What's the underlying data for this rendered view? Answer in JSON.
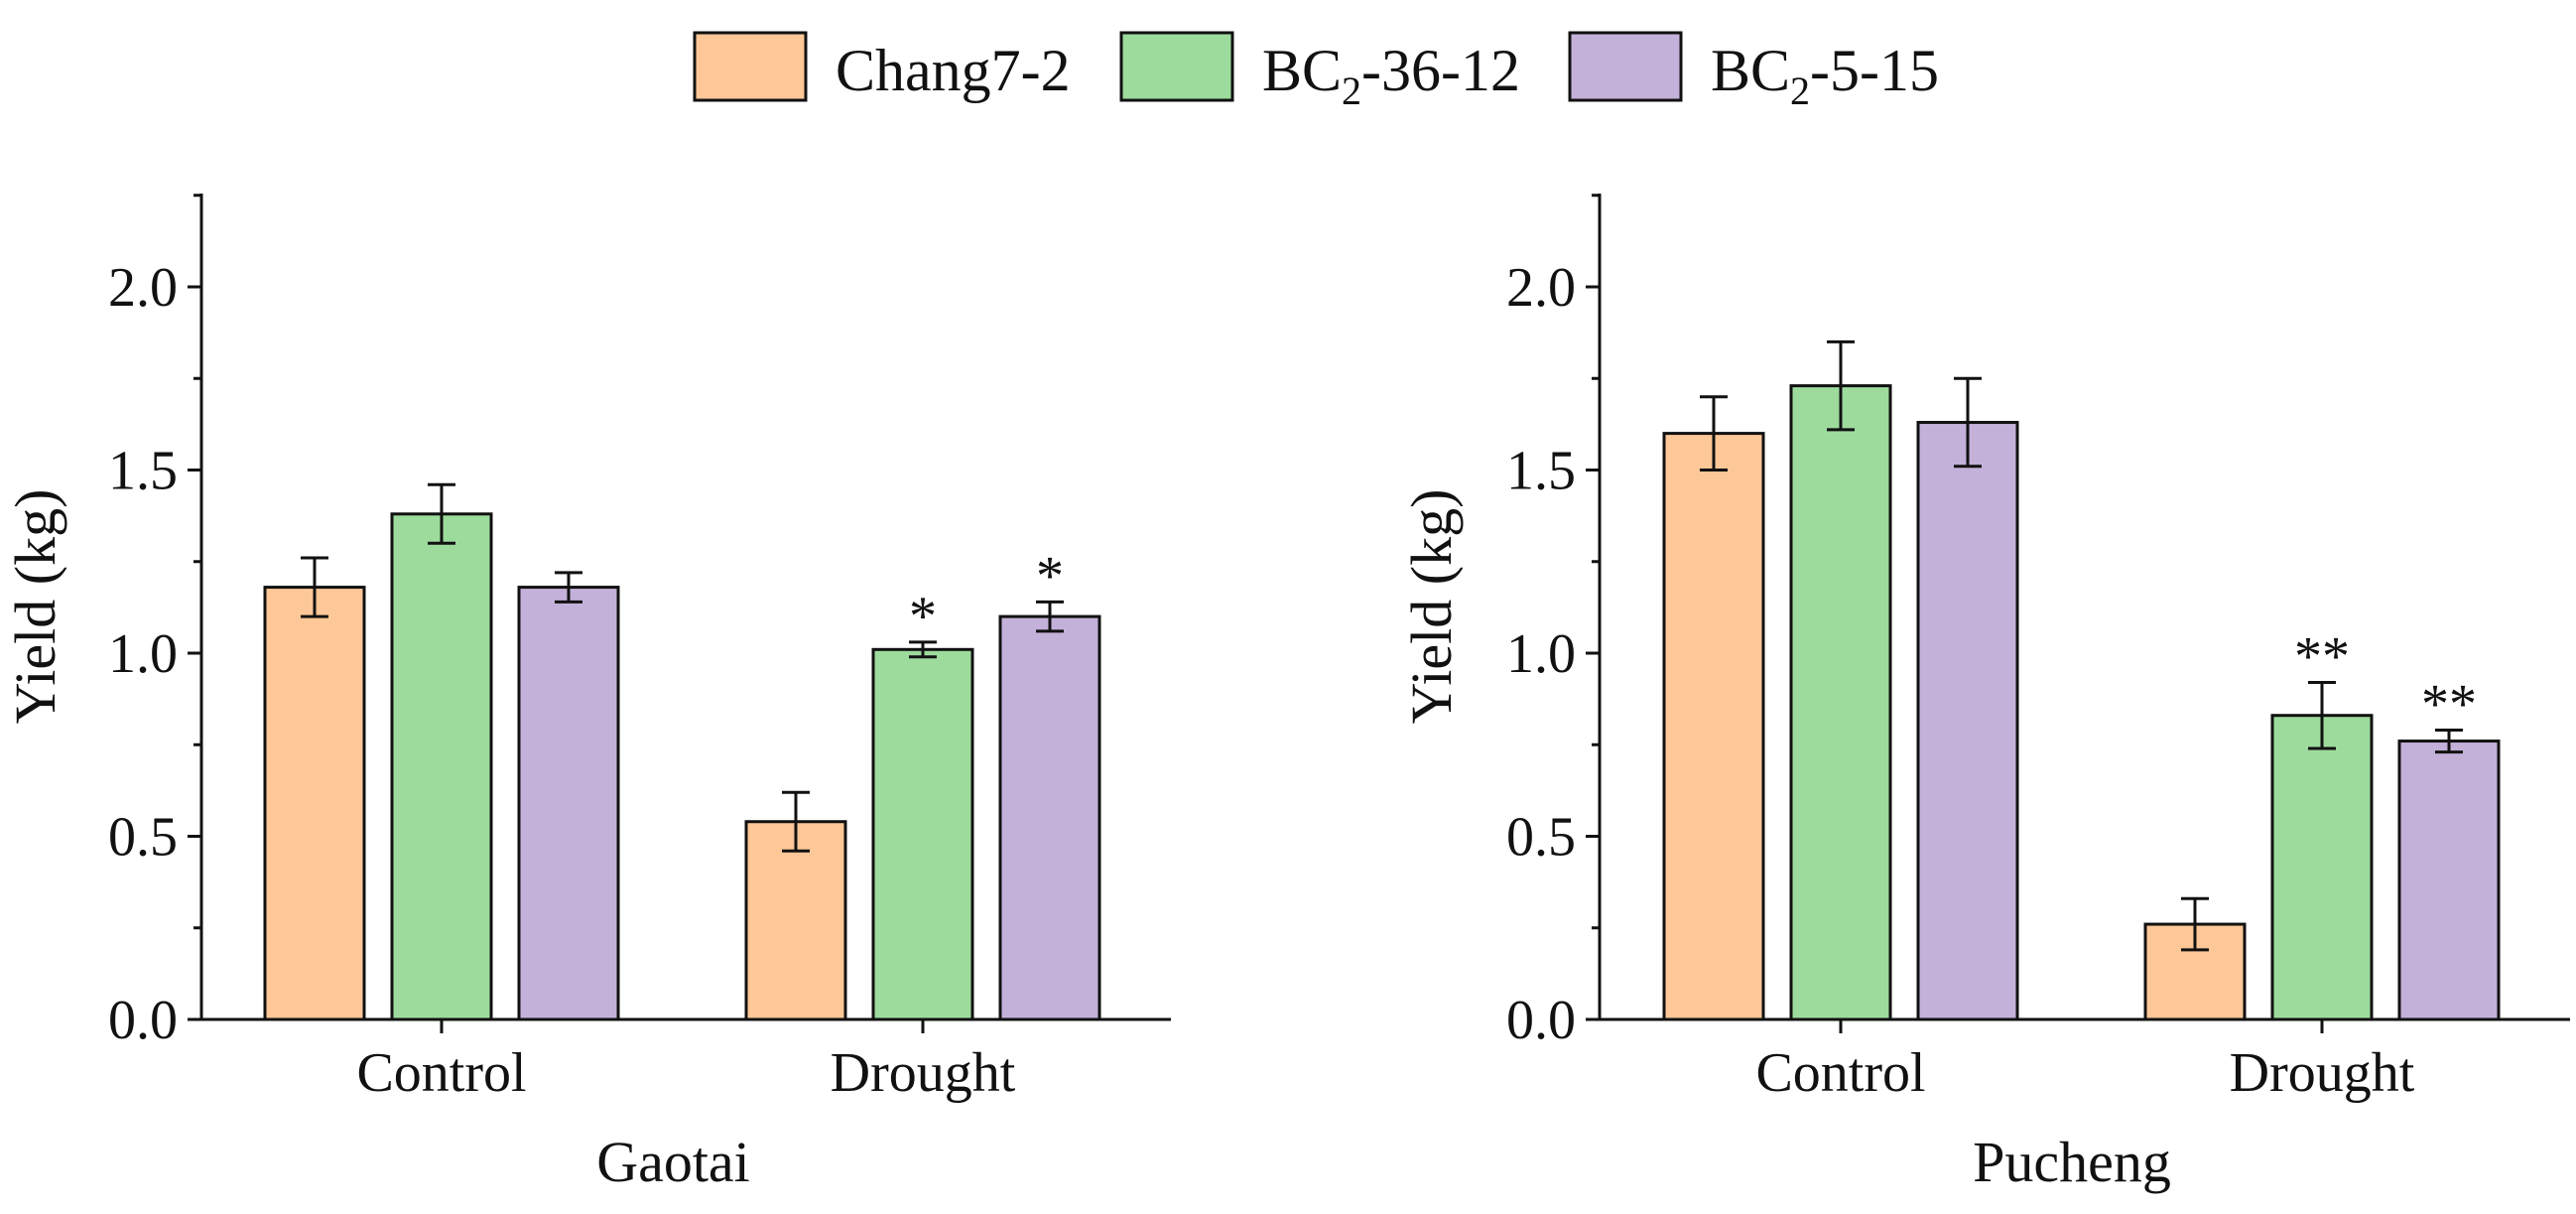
{
  "chart_data": [
    {
      "type": "bar",
      "title": "",
      "xlabel": "Gaotai",
      "ylabel": "Yield (kg)",
      "ylim": [
        0,
        2.25
      ],
      "yticks": [
        "0.0",
        "0.5",
        "1.0",
        "1.5",
        "2.0"
      ],
      "categories": [
        "Control",
        "Drought"
      ],
      "series": [
        {
          "name": "Chang7-2",
          "values": [
            1.18,
            0.54
          ],
          "errors": [
            0.08,
            0.08
          ],
          "sig": [
            "",
            ""
          ]
        },
        {
          "name": "BC2-36-12",
          "values": [
            1.38,
            1.01
          ],
          "errors": [
            0.08,
            0.02
          ],
          "sig": [
            "",
            "*"
          ]
        },
        {
          "name": "BC2-5-15",
          "values": [
            1.18,
            1.1
          ],
          "errors": [
            0.04,
            0.04
          ],
          "sig": [
            "",
            "*"
          ]
        }
      ]
    },
    {
      "type": "bar",
      "title": "",
      "xlabel": "Pucheng",
      "ylabel": "Yield (kg)",
      "ylim": [
        0,
        2.25
      ],
      "yticks": [
        "0.0",
        "0.5",
        "1.0",
        "1.5",
        "2.0"
      ],
      "categories": [
        "Control",
        "Drought"
      ],
      "series": [
        {
          "name": "Chang7-2",
          "values": [
            1.6,
            0.26
          ],
          "errors": [
            0.1,
            0.07
          ],
          "sig": [
            "",
            ""
          ]
        },
        {
          "name": "BC2-36-12",
          "values": [
            1.73,
            0.83
          ],
          "errors": [
            0.12,
            0.09
          ],
          "sig": [
            "",
            "**"
          ]
        },
        {
          "name": "BC2-5-15",
          "values": [
            1.63,
            0.76
          ],
          "errors": [
            0.12,
            0.03
          ],
          "sig": [
            "",
            "**"
          ]
        }
      ]
    }
  ],
  "legend": {
    "items": [
      {
        "base": "Chang7-2",
        "sub": "",
        "rest": "",
        "color": "#FDC797"
      },
      {
        "base": "BC",
        "sub": "2",
        "rest": "-36-12",
        "color": "#9DDB9D"
      },
      {
        "base": "BC",
        "sub": "2",
        "rest": "-5-15",
        "color": "#C4B1D9"
      }
    ]
  },
  "colors": {
    "series": [
      "#FDC797",
      "#9DDB9D",
      "#C4B1D9"
    ],
    "stroke": "#111111"
  }
}
